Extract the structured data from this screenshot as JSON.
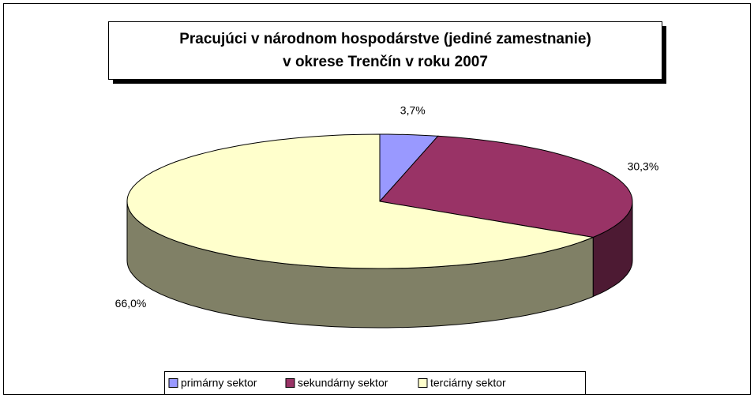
{
  "chart_data": {
    "type": "pie3d",
    "title": [
      "Pracujúci v národnom hospodárstve (jediné zamestnanie)",
      "v okrese Trenčín v roku 2007"
    ],
    "categories": [
      "primárny sektor",
      "sekundárny sektor",
      "terciárny sektor"
    ],
    "values": [
      3.7,
      30.3,
      66.0
    ],
    "value_labels": [
      "3,7%",
      "30,3%",
      "66,0%"
    ],
    "colors": [
      "#9999ff",
      "#993366",
      "#ffffcc"
    ],
    "legend": "bottom"
  }
}
